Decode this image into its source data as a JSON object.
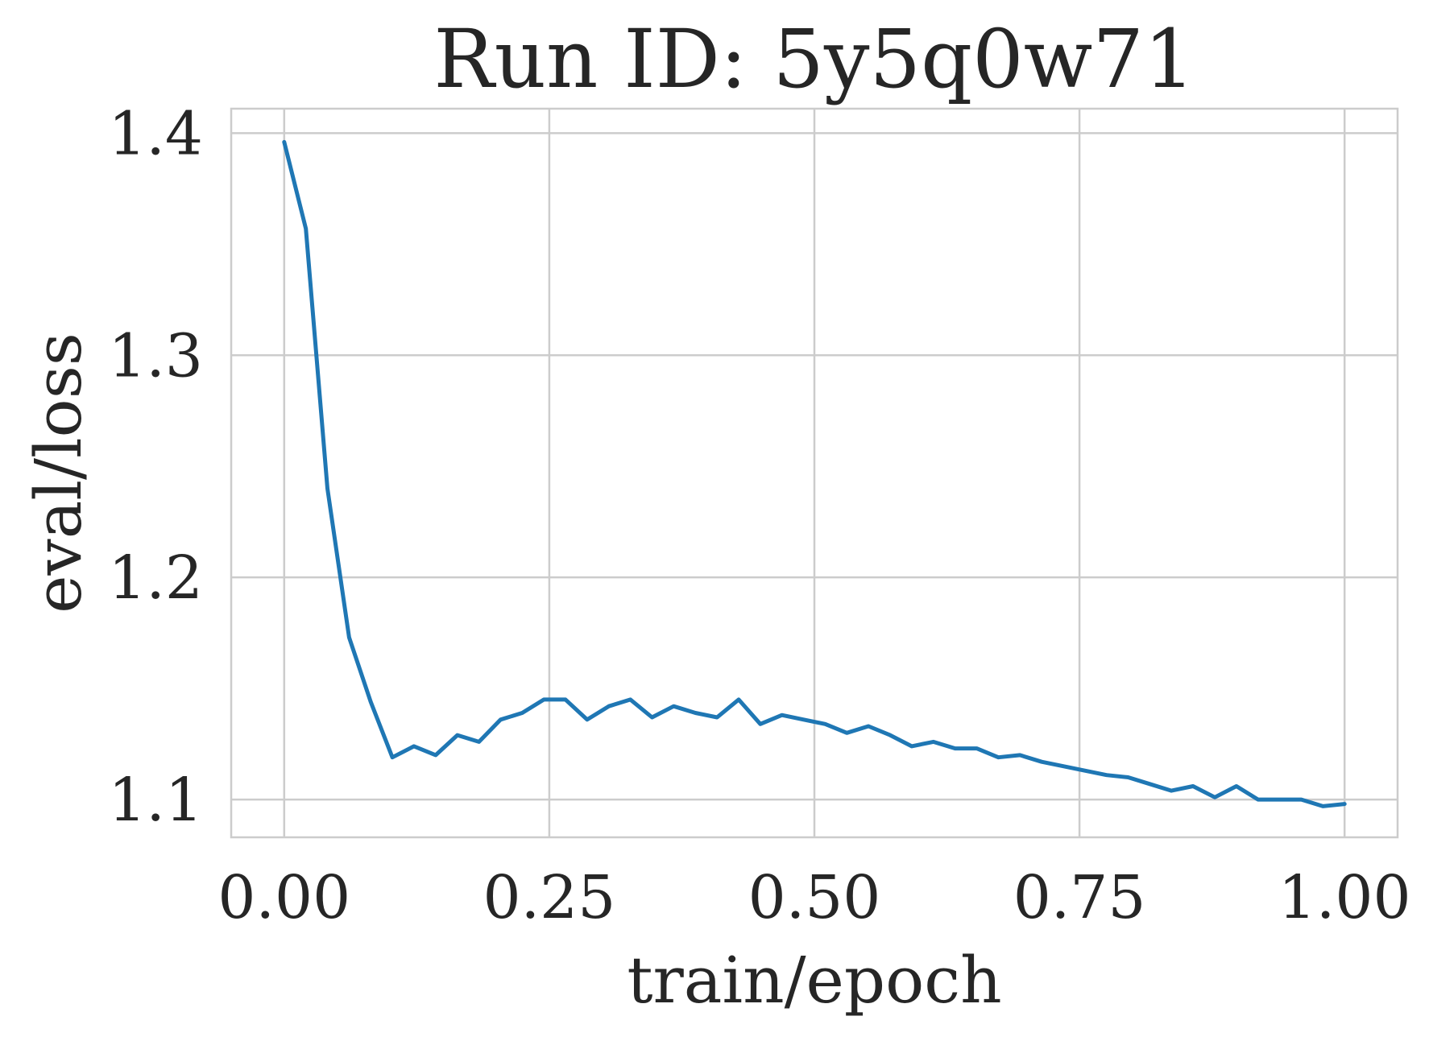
{
  "chart_data": {
    "type": "line",
    "title": "Run ID: 5y5q0w71",
    "xlabel": "train/epoch",
    "ylabel": "eval/loss",
    "xlim": [
      -0.05,
      1.05
    ],
    "ylim": [
      1.083,
      1.411
    ],
    "xticks": [
      0.0,
      0.25,
      0.5,
      0.75,
      1.0
    ],
    "xtick_labels": [
      "0.00",
      "0.25",
      "0.50",
      "0.75",
      "1.00"
    ],
    "yticks": [
      1.1,
      1.2,
      1.3,
      1.4
    ],
    "ytick_labels": [
      "1.1",
      "1.2",
      "1.3",
      "1.4"
    ],
    "grid": true,
    "series": [
      {
        "color": "#1f77b4",
        "x": [
          0.0,
          0.0204,
          0.0408,
          0.0612,
          0.0816,
          0.102,
          0.1224,
          0.1429,
          0.1633,
          0.1837,
          0.2041,
          0.2245,
          0.2449,
          0.2653,
          0.2857,
          0.3061,
          0.3265,
          0.3469,
          0.3673,
          0.3878,
          0.4082,
          0.4286,
          0.449,
          0.4694,
          0.4898,
          0.5102,
          0.5306,
          0.551,
          0.5714,
          0.5918,
          0.6122,
          0.6327,
          0.6531,
          0.6735,
          0.6939,
          0.7143,
          0.7347,
          0.7551,
          0.7755,
          0.7959,
          0.8163,
          0.8367,
          0.8571,
          0.8776,
          0.898,
          0.9184,
          0.9388,
          0.9592,
          0.9796,
          1.0
        ],
        "y": [
          1.396,
          1.357,
          1.24,
          1.173,
          1.144,
          1.119,
          1.124,
          1.12,
          1.129,
          1.126,
          1.136,
          1.139,
          1.145,
          1.145,
          1.136,
          1.142,
          1.145,
          1.137,
          1.142,
          1.139,
          1.137,
          1.145,
          1.134,
          1.138,
          1.136,
          1.134,
          1.13,
          1.133,
          1.129,
          1.124,
          1.126,
          1.123,
          1.123,
          1.119,
          1.12,
          1.117,
          1.115,
          1.113,
          1.111,
          1.11,
          1.107,
          1.104,
          1.106,
          1.101,
          1.106,
          1.1,
          1.1,
          1.1,
          1.097,
          1.098
        ]
      }
    ]
  }
}
